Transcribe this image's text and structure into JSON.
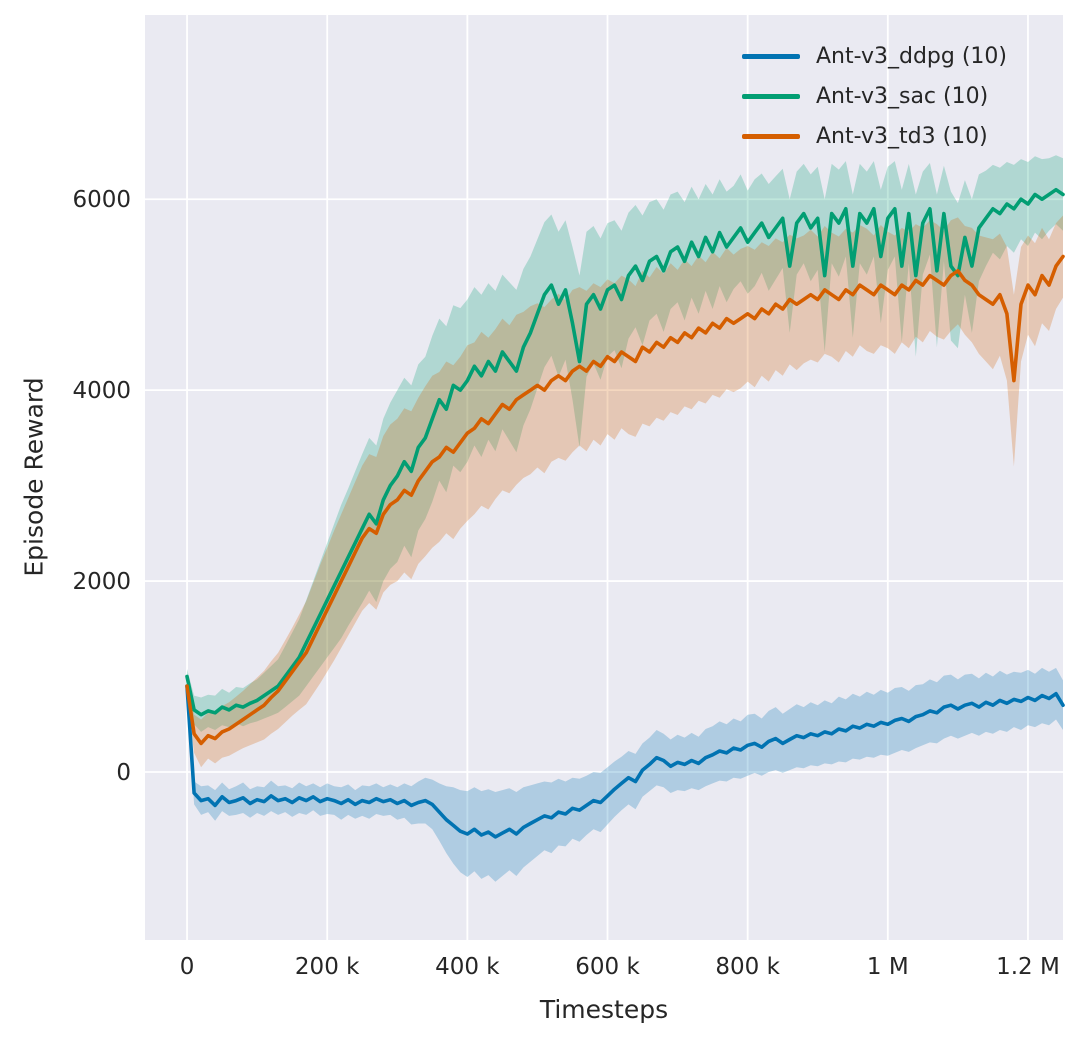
{
  "figure": {
    "background": "#ffffff",
    "plot_background": "#eaeaf2",
    "grid_color": "#ffffff",
    "text_color": "#262626"
  },
  "chart_data": {
    "type": "line",
    "title": "",
    "xlabel": "Timesteps",
    "ylabel": "Episode Reward",
    "xlim": [
      -60000,
      1250000
    ],
    "ylim": [
      -1760,
      7930
    ],
    "grid": true,
    "legend_position": "top-right",
    "band_opacity": 0.25,
    "x_start": 0,
    "x_step": 10000,
    "xticks": {
      "values": [
        0,
        200000,
        400000,
        600000,
        800000,
        1000000,
        1200000
      ],
      "labels": [
        "0",
        "200 k",
        "400 k",
        "600 k",
        "800 k",
        "1 M",
        "1.2 M"
      ]
    },
    "yticks": {
      "values": [
        0,
        2000,
        4000,
        6000
      ],
      "labels": [
        "0",
        "2000",
        "4000",
        "6000"
      ]
    },
    "series": [
      {
        "name": "Ant-v3_ddpg (10)",
        "color": "#0173b2",
        "mean": [
          900,
          -220,
          -300,
          -280,
          -350,
          -260,
          -320,
          -300,
          -270,
          -330,
          -290,
          -310,
          -250,
          -300,
          -280,
          -320,
          -270,
          -300,
          -260,
          -310,
          -280,
          -300,
          -330,
          -290,
          -340,
          -300,
          -320,
          -280,
          -310,
          -290,
          -330,
          -300,
          -350,
          -320,
          -300,
          -340,
          -420,
          -500,
          -560,
          -620,
          -650,
          -600,
          -660,
          -630,
          -680,
          -640,
          -600,
          -650,
          -580,
          -540,
          -500,
          -460,
          -480,
          -420,
          -440,
          -380,
          -400,
          -350,
          -300,
          -320,
          -250,
          -180,
          -120,
          -60,
          -100,
          20,
          80,
          150,
          120,
          60,
          100,
          80,
          120,
          90,
          150,
          180,
          220,
          200,
          250,
          230,
          280,
          300,
          260,
          320,
          350,
          300,
          340,
          380,
          360,
          400,
          380,
          420,
          400,
          450,
          430,
          480,
          460,
          500,
          480,
          520,
          500,
          540,
          560,
          530,
          580,
          600,
          640,
          620,
          680,
          700,
          660,
          700,
          720,
          680,
          730,
          700,
          750,
          720,
          760,
          740,
          780,
          750,
          800,
          770,
          820,
          700
        ],
        "band": [
          100,
          120,
          150,
          140,
          160,
          150,
          140,
          150,
          160,
          150,
          140,
          150,
          160,
          150,
          140,
          150,
          160,
          150,
          140,
          150,
          160,
          150,
          170,
          160,
          150,
          160,
          170,
          160,
          150,
          160,
          170,
          180,
          200,
          220,
          240,
          260,
          300,
          350,
          400,
          430,
          450,
          440,
          460,
          450,
          470,
          450,
          430,
          440,
          420,
          400,
          380,
          360,
          370,
          350,
          340,
          320,
          330,
          310,
          300,
          310,
          300,
          290,
          280,
          280,
          290,
          280,
          280,
          290,
          280,
          280,
          290,
          280,
          290,
          280,
          300,
          300,
          310,
          300,
          310,
          300,
          320,
          310,
          300,
          320,
          330,
          310,
          320,
          330,
          320,
          330,
          320,
          330,
          320,
          340,
          330,
          340,
          330,
          340,
          330,
          340,
          330,
          340,
          330,
          320,
          330,
          320,
          330,
          320,
          330,
          320,
          310,
          320,
          310,
          300,
          310,
          300,
          310,
          300,
          290,
          300,
          290,
          280,
          290,
          280,
          270,
          260
        ]
      },
      {
        "name": "Ant-v3_sac (10)",
        "color": "#029e73",
        "mean": [
          1000,
          650,
          600,
          640,
          620,
          680,
          650,
          700,
          680,
          720,
          750,
          800,
          850,
          900,
          1000,
          1100,
          1200,
          1350,
          1500,
          1650,
          1800,
          1950,
          2100,
          2250,
          2400,
          2550,
          2700,
          2600,
          2850,
          3000,
          3100,
          3250,
          3150,
          3400,
          3500,
          3700,
          3900,
          3800,
          4050,
          4000,
          4100,
          4250,
          4150,
          4300,
          4200,
          4400,
          4300,
          4200,
          4450,
          4600,
          4800,
          5000,
          5100,
          4900,
          5050,
          4700,
          4300,
          4900,
          5000,
          4850,
          5050,
          5100,
          4950,
          5200,
          5300,
          5150,
          5350,
          5400,
          5250,
          5450,
          5500,
          5350,
          5550,
          5400,
          5600,
          5450,
          5650,
          5500,
          5600,
          5700,
          5550,
          5650,
          5750,
          5600,
          5700,
          5800,
          5300,
          5750,
          5850,
          5700,
          5800,
          5200,
          5850,
          5750,
          5900,
          5300,
          5850,
          5750,
          5900,
          5400,
          5800,
          5900,
          5300,
          5850,
          5200,
          5750,
          5900,
          5250,
          5850,
          5300,
          5200,
          5600,
          5300,
          5700,
          5800,
          5900,
          5850,
          5950,
          5900,
          6000,
          5950,
          6050,
          6000,
          6050,
          6100,
          6050
        ],
        "band": [
          80,
          150,
          180,
          170,
          180,
          190,
          180,
          190,
          200,
          210,
          220,
          240,
          260,
          280,
          320,
          360,
          400,
          450,
          500,
          550,
          600,
          650,
          700,
          720,
          750,
          780,
          800,
          820,
          850,
          870,
          900,
          880,
          900,
          870,
          850,
          870,
          850,
          870,
          840,
          860,
          850,
          830,
          850,
          820,
          840,
          810,
          830,
          850,
          820,
          800,
          780,
          760,
          740,
          760,
          730,
          800,
          900,
          760,
          720,
          740,
          700,
          680,
          720,
          660,
          640,
          680,
          620,
          600,
          640,
          600,
          580,
          620,
          580,
          600,
          560,
          600,
          560,
          580,
          540,
          560,
          540,
          560,
          520,
          560,
          540,
          520,
          700,
          540,
          520,
          560,
          540,
          800,
          520,
          560,
          500,
          750,
          520,
          540,
          500,
          700,
          540,
          500,
          800,
          520,
          850,
          540,
          480,
          800,
          500,
          780,
          760,
          600,
          700,
          560,
          500,
          460,
          480,
          440,
          460,
          420,
          440,
          400,
          420,
          380,
          360,
          380
        ]
      },
      {
        "name": "Ant-v3_td3 (10)",
        "color": "#d55e00",
        "mean": [
          900,
          400,
          300,
          380,
          350,
          420,
          450,
          500,
          550,
          600,
          650,
          700,
          780,
          850,
          950,
          1050,
          1150,
          1250,
          1400,
          1550,
          1700,
          1850,
          2000,
          2150,
          2300,
          2450,
          2550,
          2500,
          2700,
          2800,
          2850,
          2950,
          2900,
          3050,
          3150,
          3250,
          3300,
          3400,
          3350,
          3450,
          3550,
          3600,
          3700,
          3650,
          3750,
          3850,
          3800,
          3900,
          3950,
          4000,
          4050,
          4000,
          4100,
          4150,
          4100,
          4200,
          4250,
          4200,
          4300,
          4250,
          4350,
          4300,
          4400,
          4350,
          4300,
          4450,
          4400,
          4500,
          4450,
          4550,
          4500,
          4600,
          4550,
          4650,
          4600,
          4700,
          4650,
          4750,
          4700,
          4750,
          4800,
          4750,
          4850,
          4800,
          4900,
          4850,
          4950,
          4900,
          4950,
          5000,
          4950,
          5050,
          5000,
          4950,
          5050,
          5000,
          5100,
          5050,
          5000,
          5100,
          5050,
          5000,
          5100,
          5050,
          5150,
          5100,
          5200,
          5150,
          5100,
          5200,
          5250,
          5150,
          5100,
          5000,
          4950,
          4900,
          5000,
          4800,
          4100,
          4900,
          5100,
          5000,
          5200,
          5100,
          5300,
          5400
        ],
        "band": [
          100,
          200,
          250,
          240,
          260,
          270,
          280,
          290,
          300,
          320,
          340,
          360,
          380,
          400,
          430,
          460,
          500,
          540,
          580,
          620,
          650,
          680,
          700,
          720,
          740,
          760,
          780,
          800,
          820,
          840,
          850,
          860,
          880,
          870,
          890,
          900,
          890,
          900,
          910,
          900,
          920,
          900,
          910,
          900,
          890,
          900,
          880,
          890,
          870,
          880,
          860,
          870,
          850,
          860,
          840,
          850,
          830,
          840,
          820,
          830,
          810,
          820,
          800,
          810,
          790,
          800,
          780,
          790,
          770,
          780,
          760,
          770,
          750,
          760,
          740,
          750,
          730,
          740,
          720,
          730,
          710,
          720,
          700,
          710,
          690,
          700,
          680,
          690,
          670,
          680,
          660,
          670,
          650,
          660,
          640,
          650,
          630,
          640,
          620,
          630,
          610,
          620,
          600,
          610,
          590,
          600,
          580,
          590,
          570,
          580,
          560,
          570,
          600,
          620,
          650,
          680,
          640,
          700,
          900,
          600,
          520,
          540,
          500,
          480,
          450,
          430
        ]
      }
    ]
  }
}
